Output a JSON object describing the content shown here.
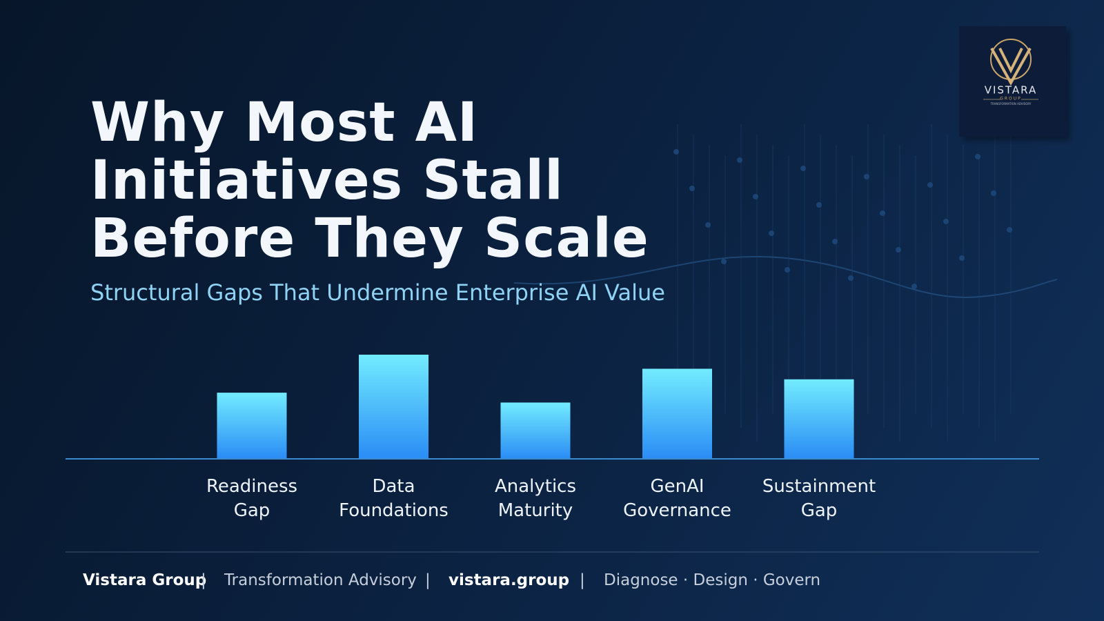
{
  "chart_data": {
    "type": "bar",
    "title": "Why Most AI Initiatives Stall Before They Scale",
    "subtitle": "Structural Gaps That Undermine Enterprise AI Value",
    "categories": [
      "Readiness Gap",
      "Data Foundations",
      "Analytics Maturity",
      "GenAI Governance",
      "Sustainment Gap"
    ],
    "values": [
      94,
      148,
      80,
      128,
      113
    ],
    "ylim": [
      0,
      150
    ],
    "color": "#2a8cf5"
  },
  "logo": {
    "name": "VISTARA",
    "sub": "GROUP",
    "tagline": "TRANSFORMATION ADVISORY"
  },
  "footer": {
    "company": "Vistara Group",
    "separator": "|",
    "tagline": "Transformation Advisory",
    "website": "vistara.group",
    "motto": "Diagnose · Design · Govern"
  }
}
